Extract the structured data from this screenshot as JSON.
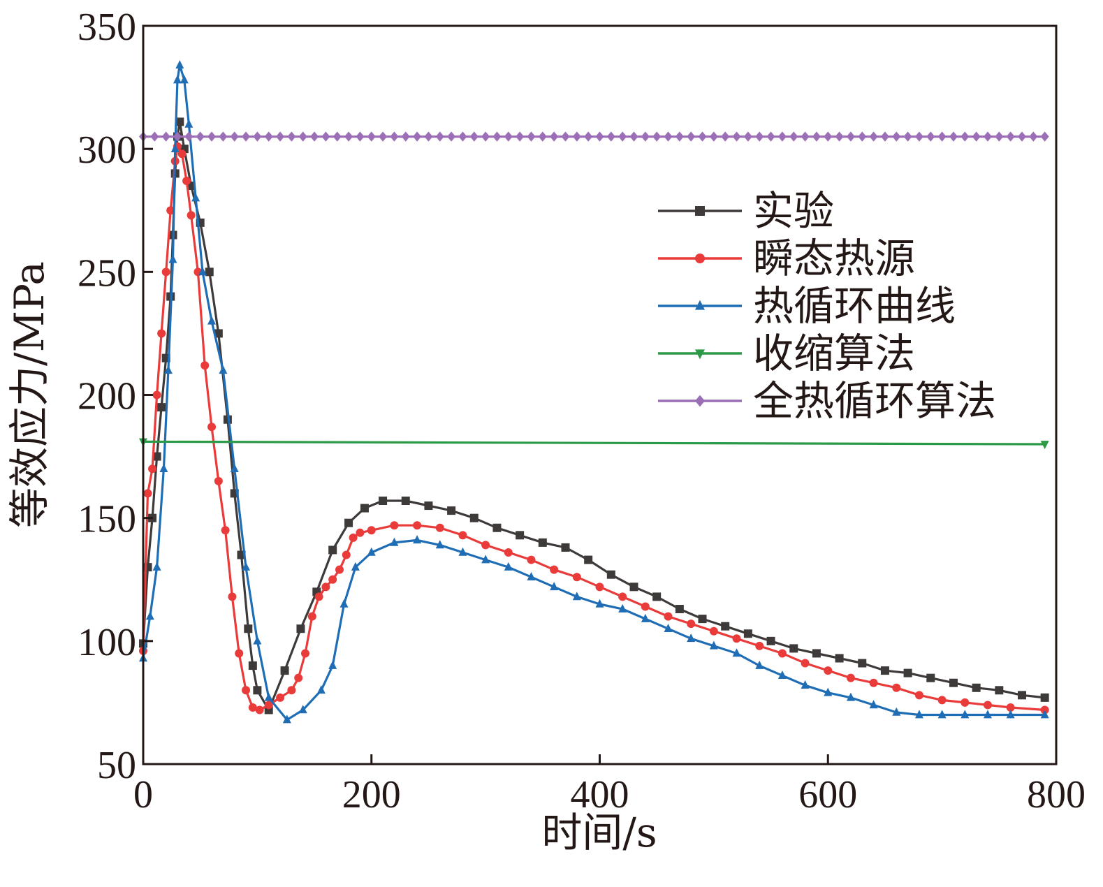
{
  "chart_data": {
    "type": "line",
    "xlabel": "时间/s",
    "ylabel": "等效应力/MPa",
    "xlim": [
      0,
      800
    ],
    "ylim": [
      50,
      350
    ],
    "xticks": [
      0,
      200,
      400,
      600,
      800
    ],
    "yticks": [
      50,
      100,
      150,
      200,
      250,
      300,
      350
    ],
    "grid": false,
    "legend_position": "right",
    "series": [
      {
        "name": "实验",
        "color": "#3e3a39",
        "marker": "square",
        "points": [
          [
            0,
            99
          ],
          [
            4,
            130
          ],
          [
            8,
            150
          ],
          [
            12,
            175
          ],
          [
            16,
            195
          ],
          [
            20,
            215
          ],
          [
            24,
            240
          ],
          [
            26,
            265
          ],
          [
            28,
            290
          ],
          [
            30,
            305
          ],
          [
            32,
            311
          ],
          [
            36,
            300
          ],
          [
            42,
            285
          ],
          [
            50,
            270
          ],
          [
            58,
            250
          ],
          [
            66,
            225
          ],
          [
            74,
            190
          ],
          [
            80,
            160
          ],
          [
            86,
            135
          ],
          [
            92,
            105
          ],
          [
            96,
            90
          ],
          [
            100,
            80
          ],
          [
            110,
            72
          ],
          [
            124,
            88
          ],
          [
            138,
            105
          ],
          [
            152,
            120
          ],
          [
            166,
            137
          ],
          [
            180,
            148
          ],
          [
            194,
            154
          ],
          [
            210,
            157
          ],
          [
            230,
            157
          ],
          [
            250,
            155
          ],
          [
            270,
            153
          ],
          [
            290,
            150
          ],
          [
            310,
            146
          ],
          [
            330,
            143
          ],
          [
            350,
            140
          ],
          [
            370,
            138
          ],
          [
            390,
            133
          ],
          [
            410,
            127
          ],
          [
            430,
            122
          ],
          [
            450,
            118
          ],
          [
            470,
            113
          ],
          [
            490,
            109
          ],
          [
            510,
            106
          ],
          [
            530,
            103
          ],
          [
            550,
            100
          ],
          [
            570,
            97
          ],
          [
            590,
            95
          ],
          [
            610,
            93
          ],
          [
            630,
            91
          ],
          [
            650,
            88
          ],
          [
            670,
            87
          ],
          [
            690,
            85
          ],
          [
            710,
            83
          ],
          [
            730,
            81
          ],
          [
            750,
            80
          ],
          [
            770,
            78
          ],
          [
            790,
            77
          ]
        ]
      },
      {
        "name": "瞬态热源",
        "color": "#e93b3a",
        "marker": "circle",
        "points": [
          [
            0,
            96
          ],
          [
            4,
            160
          ],
          [
            8,
            170
          ],
          [
            12,
            200
          ],
          [
            16,
            225
          ],
          [
            20,
            250
          ],
          [
            24,
            275
          ],
          [
            28,
            295
          ],
          [
            30,
            301
          ],
          [
            34,
            298
          ],
          [
            38,
            287
          ],
          [
            42,
            273
          ],
          [
            48,
            250
          ],
          [
            54,
            212
          ],
          [
            60,
            187
          ],
          [
            66,
            165
          ],
          [
            72,
            145
          ],
          [
            78,
            118
          ],
          [
            84,
            95
          ],
          [
            90,
            80
          ],
          [
            96,
            73
          ],
          [
            102,
            72
          ],
          [
            110,
            74
          ],
          [
            120,
            77
          ],
          [
            130,
            80
          ],
          [
            136,
            85
          ],
          [
            142,
            95
          ],
          [
            148,
            110
          ],
          [
            154,
            118
          ],
          [
            160,
            122
          ],
          [
            166,
            125
          ],
          [
            172,
            129
          ],
          [
            178,
            135
          ],
          [
            184,
            142
          ],
          [
            190,
            144
          ],
          [
            200,
            145
          ],
          [
            220,
            147
          ],
          [
            240,
            147
          ],
          [
            260,
            146
          ],
          [
            280,
            143
          ],
          [
            300,
            139
          ],
          [
            320,
            136
          ],
          [
            340,
            133
          ],
          [
            360,
            129
          ],
          [
            380,
            126
          ],
          [
            400,
            122
          ],
          [
            420,
            118
          ],
          [
            440,
            114
          ],
          [
            460,
            110
          ],
          [
            480,
            107
          ],
          [
            500,
            104
          ],
          [
            520,
            101
          ],
          [
            540,
            98
          ],
          [
            560,
            95
          ],
          [
            580,
            91
          ],
          [
            600,
            88
          ],
          [
            620,
            85
          ],
          [
            640,
            83
          ],
          [
            660,
            81
          ],
          [
            680,
            78
          ],
          [
            700,
            76
          ],
          [
            720,
            75
          ],
          [
            740,
            74
          ],
          [
            760,
            73
          ],
          [
            790,
            72
          ]
        ]
      },
      {
        "name": "热循环曲线",
        "color": "#1f6db5",
        "marker": "triangle-up",
        "points": [
          [
            0,
            93
          ],
          [
            6,
            110
          ],
          [
            12,
            130
          ],
          [
            18,
            170
          ],
          [
            22,
            210
          ],
          [
            26,
            255
          ],
          [
            28,
            300
          ],
          [
            30,
            328
          ],
          [
            32,
            334
          ],
          [
            36,
            328
          ],
          [
            40,
            310
          ],
          [
            46,
            280
          ],
          [
            52,
            250
          ],
          [
            60,
            230
          ],
          [
            70,
            210
          ],
          [
            80,
            170
          ],
          [
            90,
            130
          ],
          [
            100,
            100
          ],
          [
            110,
            77
          ],
          [
            126,
            68
          ],
          [
            140,
            72
          ],
          [
            156,
            80
          ],
          [
            166,
            90
          ],
          [
            176,
            115
          ],
          [
            186,
            130
          ],
          [
            200,
            136
          ],
          [
            220,
            140
          ],
          [
            240,
            141
          ],
          [
            260,
            139
          ],
          [
            280,
            136
          ],
          [
            300,
            133
          ],
          [
            320,
            130
          ],
          [
            340,
            126
          ],
          [
            360,
            122
          ],
          [
            380,
            118
          ],
          [
            400,
            115
          ],
          [
            420,
            113
          ],
          [
            440,
            109
          ],
          [
            460,
            105
          ],
          [
            480,
            101
          ],
          [
            500,
            98
          ],
          [
            520,
            95
          ],
          [
            540,
            90
          ],
          [
            560,
            86
          ],
          [
            580,
            82
          ],
          [
            600,
            79
          ],
          [
            620,
            77
          ],
          [
            640,
            74
          ],
          [
            660,
            71
          ],
          [
            680,
            70
          ],
          [
            700,
            70
          ],
          [
            720,
            70
          ],
          [
            740,
            70
          ],
          [
            760,
            70
          ],
          [
            790,
            70
          ]
        ]
      },
      {
        "name": "收缩算法",
        "color": "#2b9a46",
        "marker": "triangle-down",
        "points": [
          [
            0,
            181
          ],
          [
            790,
            180
          ]
        ]
      },
      {
        "name": "全热循环算法",
        "color": "#9b6fb5",
        "marker": "diamond",
        "points": [
          [
            0,
            305
          ],
          [
            790,
            305
          ]
        ]
      }
    ]
  }
}
